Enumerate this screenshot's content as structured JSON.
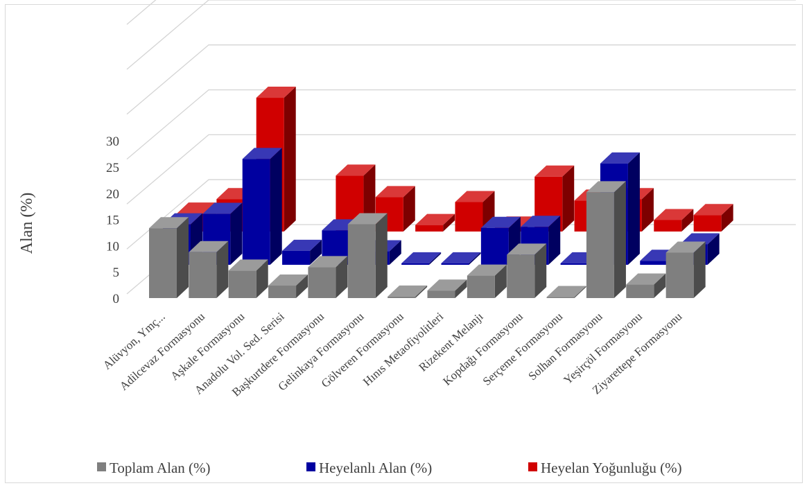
{
  "chart_data": {
    "type": "bar",
    "subtype": "3d-column",
    "title": "",
    "ylabel": "Alan (%)",
    "xlabel": "",
    "ylim": [
      0,
      30
    ],
    "yticks": [
      0,
      5,
      10,
      15,
      20,
      25,
      30
    ],
    "grid": true,
    "legend_position": "bottom",
    "categories": [
      "Alüvyon, Ymç...",
      "Adilcevaz Formasyonu",
      "Aşkale Formasyonu",
      "Anadolu Vol. Sed. Serisi",
      "Başkurtdere Formasyonu",
      "Gelinkaya Formasyonu",
      "Gölveren Formasyonu",
      "Hınıs Metaofiyolitleri",
      "Rizekent Melanjı",
      "Kopdağı Formasyonu",
      "Serçeme Formasyonu",
      "Solhan Formasyonu",
      "Yeşirçöl Formasyonu",
      "Ziyarettepe Formasyonu"
    ],
    "series": [
      {
        "name": "Toplam Alan (%)",
        "color": "#7f7f7f",
        "values": [
          14,
          9.2,
          5.5,
          2.5,
          6.2,
          14.8,
          0.3,
          1.5,
          4.5,
          8.7,
          0.2,
          21.2,
          2.7,
          9.1
        ]
      },
      {
        "name": "Heyelanlı Alan (%)",
        "color": "#0000a0",
        "values": [
          8.1,
          10.2,
          21.2,
          2.8,
          6.9,
          2.7,
          0.3,
          0.3,
          7.4,
          7.6,
          0.3,
          20.3,
          0.8,
          4.1
        ]
      },
      {
        "name": "Heyelan Yoğunluğu (%)",
        "color": "#d00000",
        "values": [
          3.6,
          6.5,
          26.8,
          0,
          11.2,
          6.9,
          1.3,
          5.9,
          0.8,
          11,
          6.2,
          6.5,
          2.3,
          3.3
        ]
      }
    ]
  }
}
